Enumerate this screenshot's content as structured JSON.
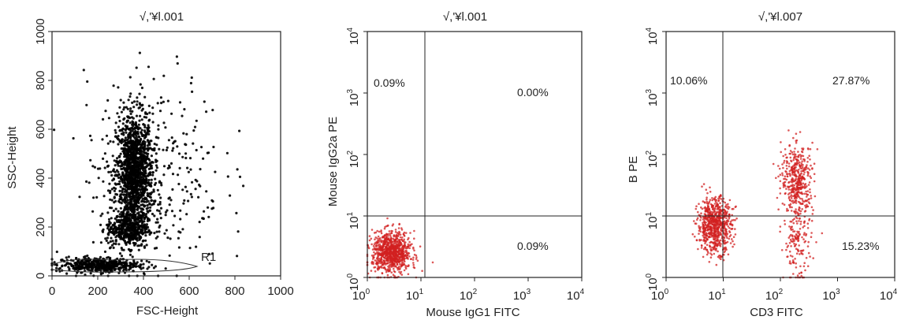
{
  "chart_data": [
    {
      "type": "scatter",
      "title": "√,'¥l.001",
      "xlabel": "FSC-Height",
      "ylabel": "SSC-Height",
      "xlim": [
        0,
        1000
      ],
      "ylim": [
        0,
        1000
      ],
      "x_ticks": [
        "0",
        "200",
        "400",
        "600",
        "800",
        "1000"
      ],
      "y_ticks": [
        "0",
        "200",
        "400",
        "600",
        "800",
        "1000"
      ],
      "color": "#000000",
      "gate_label": "R1",
      "series": [
        {
          "cx": 360,
          "cy": 420,
          "sx": 40,
          "sy": 120,
          "weight": 0.55
        },
        {
          "cx": 330,
          "cy": 190,
          "sx": 45,
          "sy": 35,
          "weight": 0.15
        },
        {
          "cx": 200,
          "cy": 45,
          "sx": 90,
          "sy": 15,
          "weight": 0.18
        },
        {
          "cx": 450,
          "cy": 420,
          "sx": 150,
          "sy": 200,
          "weight": 0.12
        }
      ]
    },
    {
      "type": "scatter",
      "title": "√,'¥l.001",
      "xlabel": "Mouse IgG1 FITC",
      "ylabel": "Mouse IgG2a PE",
      "scale": "log",
      "xlim": [
        1,
        10000
      ],
      "ylim": [
        1,
        10000
      ],
      "x_ticks": [
        "10",
        "10",
        "10",
        "10",
        "10"
      ],
      "y_ticks": [
        "10",
        "10",
        "10",
        "10",
        "10"
      ],
      "tick_exponents": [
        "0",
        "1",
        "2",
        "3",
        "4"
      ],
      "quadrant_divider": [
        10,
        10
      ],
      "color": "#d22020",
      "quadrants": {
        "upper_left": "0.09%",
        "upper_right": "0.00%",
        "lower_right": "0.09%"
      },
      "series": [
        {
          "cx": 0.45,
          "cy": 0.4,
          "sx": 0.18,
          "sy": 0.17,
          "weight": 1.0
        }
      ]
    },
    {
      "type": "scatter",
      "title": "√,'¥l.007",
      "xlabel": "CD3 FITC",
      "ylabel": "B PE",
      "scale": "log",
      "xlim": [
        1,
        10000
      ],
      "ylim": [
        1,
        10000
      ],
      "x_ticks": [
        "10",
        "10",
        "10",
        "10",
        "10"
      ],
      "y_ticks": [
        "10",
        "10",
        "10",
        "10",
        "10"
      ],
      "tick_exponents": [
        "0",
        "1",
        "2",
        "3",
        "4"
      ],
      "quadrant_divider": [
        10,
        10
      ],
      "color": "#d22020",
      "quadrants": {
        "upper_left": "10.06%",
        "upper_right": "27.87%",
        "lower_right": "15.23%"
      },
      "series": [
        {
          "cx": 0.85,
          "cy": 0.85,
          "sx": 0.15,
          "sy": 0.22,
          "weight": 0.55
        },
        {
          "cx": 2.3,
          "cy": 1.6,
          "sx": 0.14,
          "sy": 0.28,
          "weight": 0.32
        },
        {
          "cx": 2.3,
          "cy": 0.6,
          "sx": 0.12,
          "sy": 0.35,
          "weight": 0.13
        }
      ]
    }
  ]
}
